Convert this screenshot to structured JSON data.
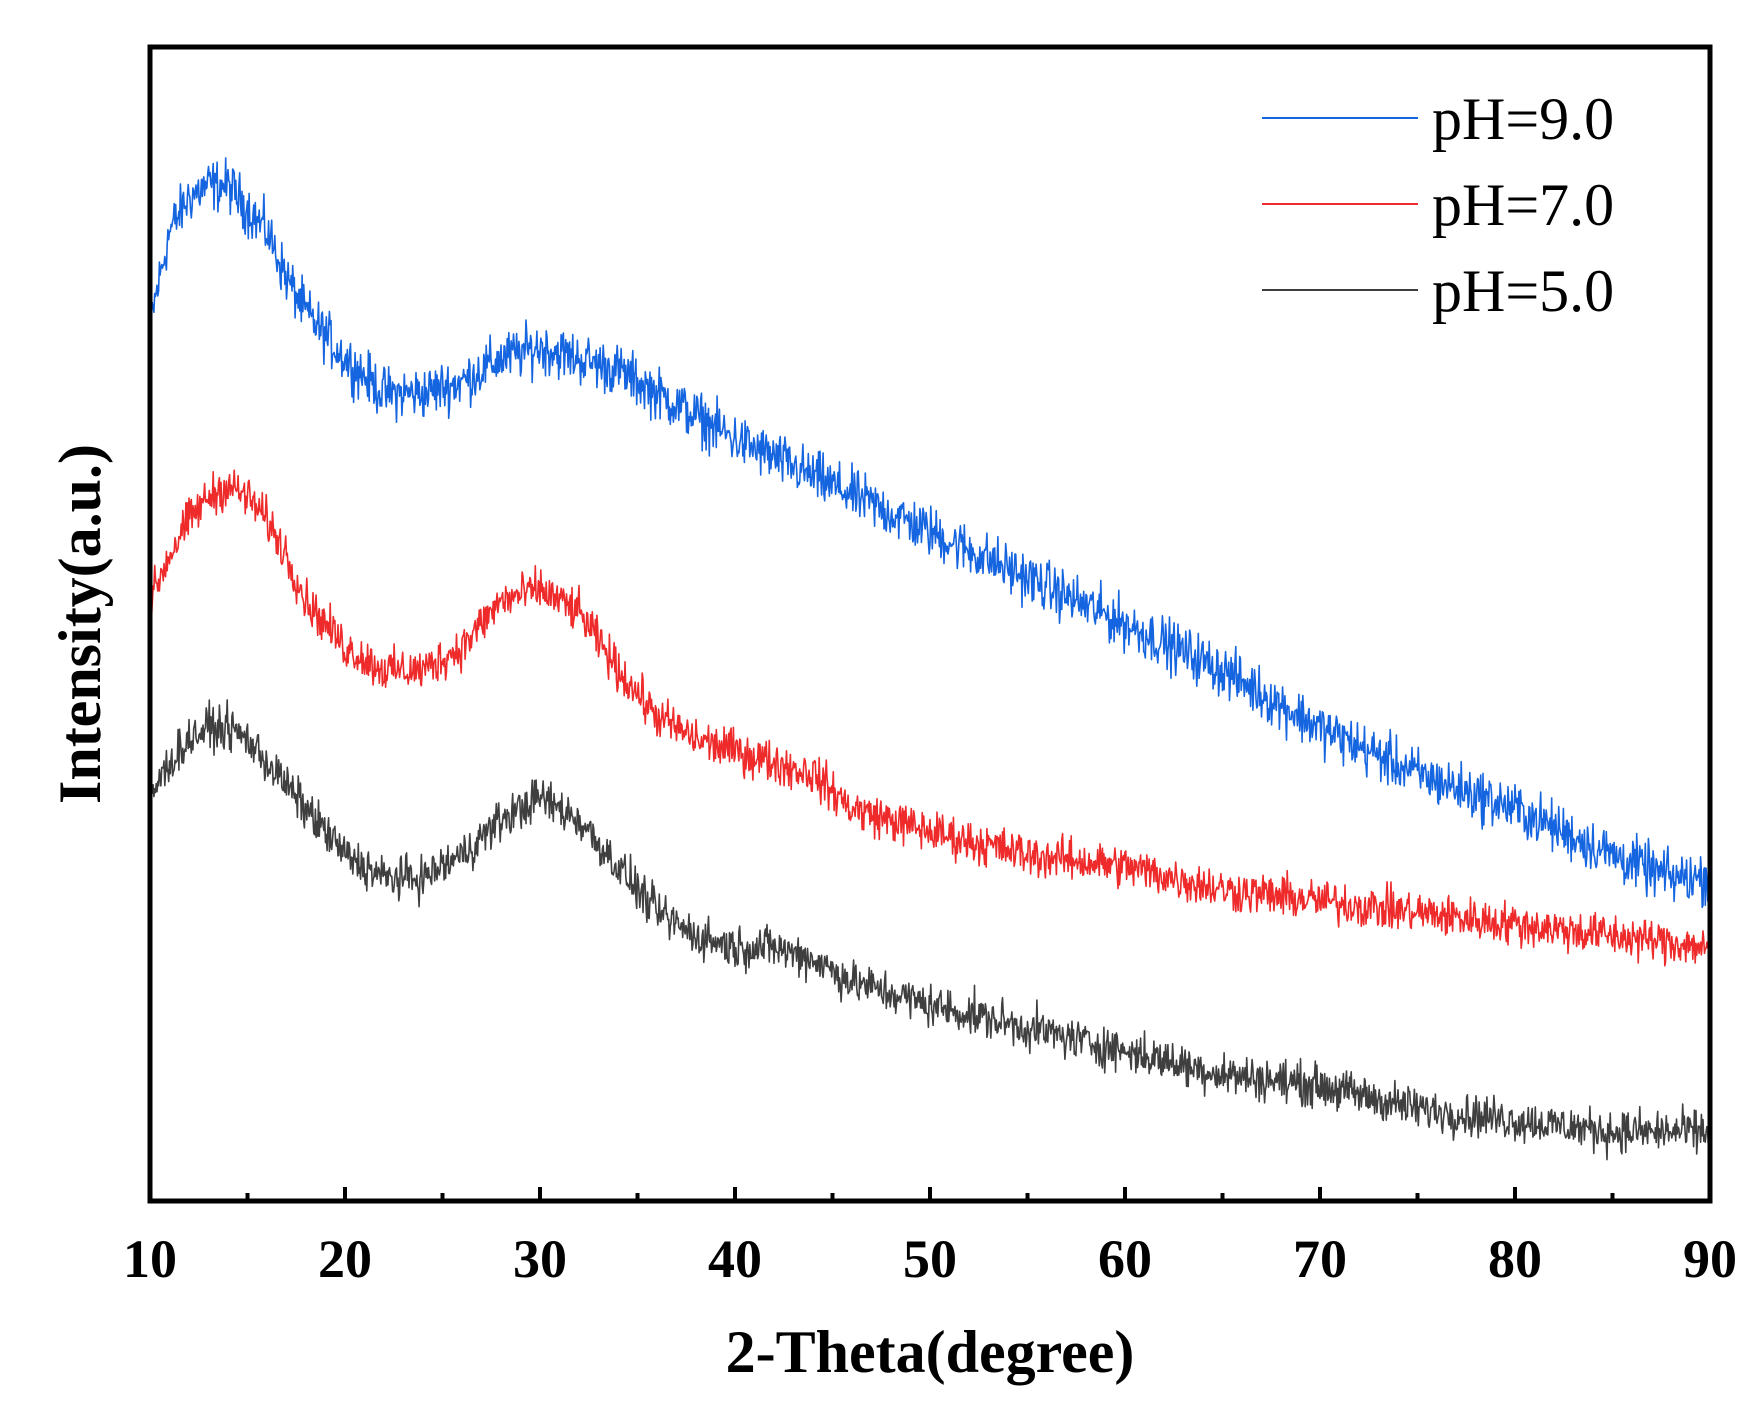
{
  "chart_data": {
    "type": "line",
    "title": "",
    "xlabel": "2-Theta(degree)",
    "ylabel": "Intensity(a.u.)",
    "xlim": [
      10,
      90
    ],
    "xticks": [
      10,
      20,
      30,
      40,
      50,
      60,
      70,
      80,
      90
    ],
    "xtick_labels": [
      "10",
      "20",
      "30",
      "40",
      "50",
      "60",
      "70",
      "80",
      "90"
    ],
    "x_minor_step": 5,
    "yticks_shown": false,
    "grid": false,
    "legend_position": "top-right",
    "series": [
      {
        "name": "pH=9.0",
        "color": "#1565e0",
        "noise": 5.5,
        "x": [
          10,
          11,
          12,
          13,
          14,
          15,
          16,
          17,
          18,
          20,
          22,
          24,
          26,
          28,
          30,
          32,
          34,
          36,
          38,
          40,
          45,
          50,
          55,
          60,
          65,
          70,
          75,
          80,
          85,
          88,
          90
        ],
        "y": [
          76,
          84,
          87,
          88,
          88,
          86,
          84,
          80,
          77,
          73,
          70,
          70,
          71,
          73,
          74,
          73,
          72,
          70,
          68,
          66,
          62,
          58,
          54,
          50,
          46,
          41,
          37,
          34,
          30,
          28,
          28
        ]
      },
      {
        "name": "pH=7.0",
        "color": "#ee2a2a",
        "noise": 4.5,
        "x": [
          10,
          11,
          12,
          13,
          14,
          15,
          16,
          17,
          18,
          20,
          22,
          24,
          26,
          28,
          30,
          32,
          34,
          36,
          38,
          40,
          42,
          44,
          46,
          48,
          50,
          55,
          60,
          65,
          70,
          75,
          80,
          85,
          90
        ],
        "y": [
          52,
          56,
          59,
          61,
          62,
          61,
          59,
          56,
          52,
          48,
          46,
          46,
          48,
          52,
          53,
          51,
          46,
          42,
          40,
          39,
          38,
          37,
          34,
          33,
          32,
          30,
          29,
          27,
          26,
          25,
          24,
          23,
          22
        ]
      },
      {
        "name": "pH=5.0",
        "color": "#3f3f3f",
        "noise": 4.5,
        "x": [
          10,
          11,
          12,
          13,
          14,
          15,
          16,
          17,
          18,
          20,
          22,
          24,
          26,
          28,
          30,
          32,
          34,
          36,
          38,
          40,
          42,
          44,
          46,
          48,
          50,
          55,
          60,
          65,
          70,
          75,
          80,
          85,
          90
        ],
        "y": [
          35,
          38,
          40,
          41,
          41,
          40,
          38,
          36,
          34,
          30,
          28,
          28,
          30,
          33,
          35,
          33,
          29,
          25,
          23,
          22,
          22,
          21,
          19,
          18,
          17,
          15,
          13,
          11,
          10,
          8,
          7,
          6,
          6
        ]
      }
    ]
  }
}
